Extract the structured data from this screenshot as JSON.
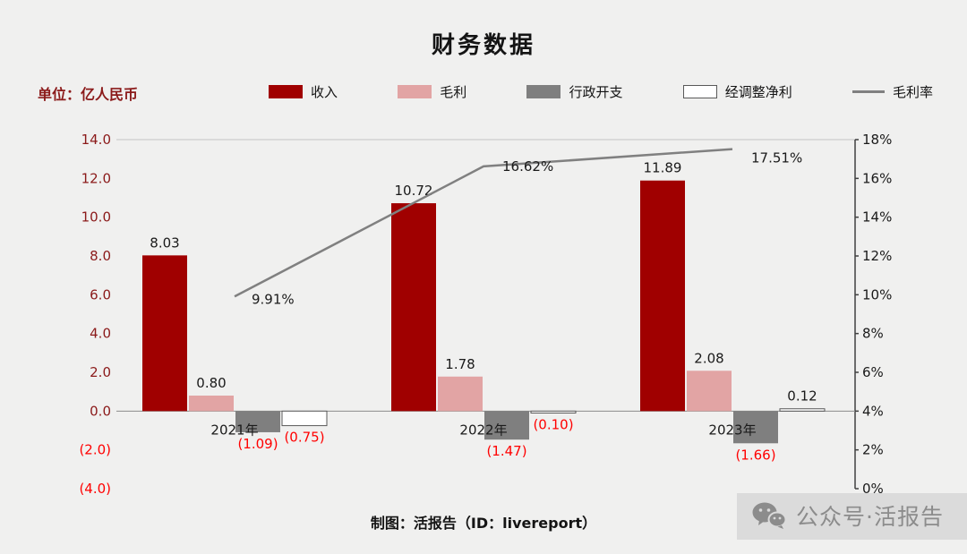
{
  "chart_data": {
    "type": "bar+line",
    "title": "财务数据",
    "unit_label": "单位：亿人民币",
    "footer": "制图：活报告（ID：livereport）",
    "watermark": "公众号·活报告",
    "categories": [
      "2021年",
      "2022年",
      "2023年"
    ],
    "colors": {
      "revenue": "#A00000",
      "gross_profit": "#E2A4A4",
      "admin_expense": "#7F7F7F",
      "adjusted_net_profit": "#FFFFFF",
      "margin_line": "#808080",
      "negative_label": "#FF0000",
      "left_axis_text": "#8B1A1A",
      "right_axis_text": "#1A1A1A",
      "label_text": "#1A1A1A",
      "background": "#F0F0EF"
    },
    "series": [
      {
        "name": "收入",
        "en": "revenue",
        "kind": "bar",
        "color": "#A00000",
        "values": [
          8.03,
          10.72,
          11.89
        ],
        "labels": [
          "8.03",
          "10.72",
          "11.89"
        ]
      },
      {
        "name": "毛利",
        "en": "gross-profit",
        "kind": "bar",
        "color": "#E2A4A4",
        "values": [
          0.8,
          1.78,
          2.08
        ],
        "labels": [
          "0.80",
          "1.78",
          "2.08"
        ]
      },
      {
        "name": "行政开支",
        "en": "admin-expense",
        "kind": "bar",
        "color": "#7F7F7F",
        "values": [
          -1.09,
          -1.47,
          -1.66
        ],
        "labels": [
          "(1.09)",
          "(1.47)",
          "(1.66)"
        ]
      },
      {
        "name": "经调整净利",
        "en": "adjusted-net-profit",
        "kind": "bar",
        "color": "#FFFFFF",
        "values": [
          -0.75,
          -0.1,
          0.12
        ],
        "labels": [
          "(0.75)",
          "(0.10)",
          "0.12"
        ]
      },
      {
        "name": "毛利率",
        "en": "gross-margin",
        "kind": "line",
        "axis": "right",
        "color": "#808080",
        "values": [
          9.91,
          16.62,
          17.51
        ],
        "labels": [
          "9.91%",
          "16.62%",
          "17.51%"
        ]
      }
    ],
    "left_axis": {
      "min": -4,
      "max": 14,
      "ticks": [
        "14.0",
        "12.0",
        "10.0",
        "8.0",
        "6.0",
        "4.0",
        "2.0",
        "0.0",
        "(2.0)",
        "(4.0)"
      ]
    },
    "right_axis": {
      "min": 0,
      "max": 18,
      "ticks": [
        "18%",
        "16%",
        "14%",
        "12%",
        "10%",
        "8%",
        "6%",
        "4%",
        "2%",
        "0%"
      ]
    }
  }
}
